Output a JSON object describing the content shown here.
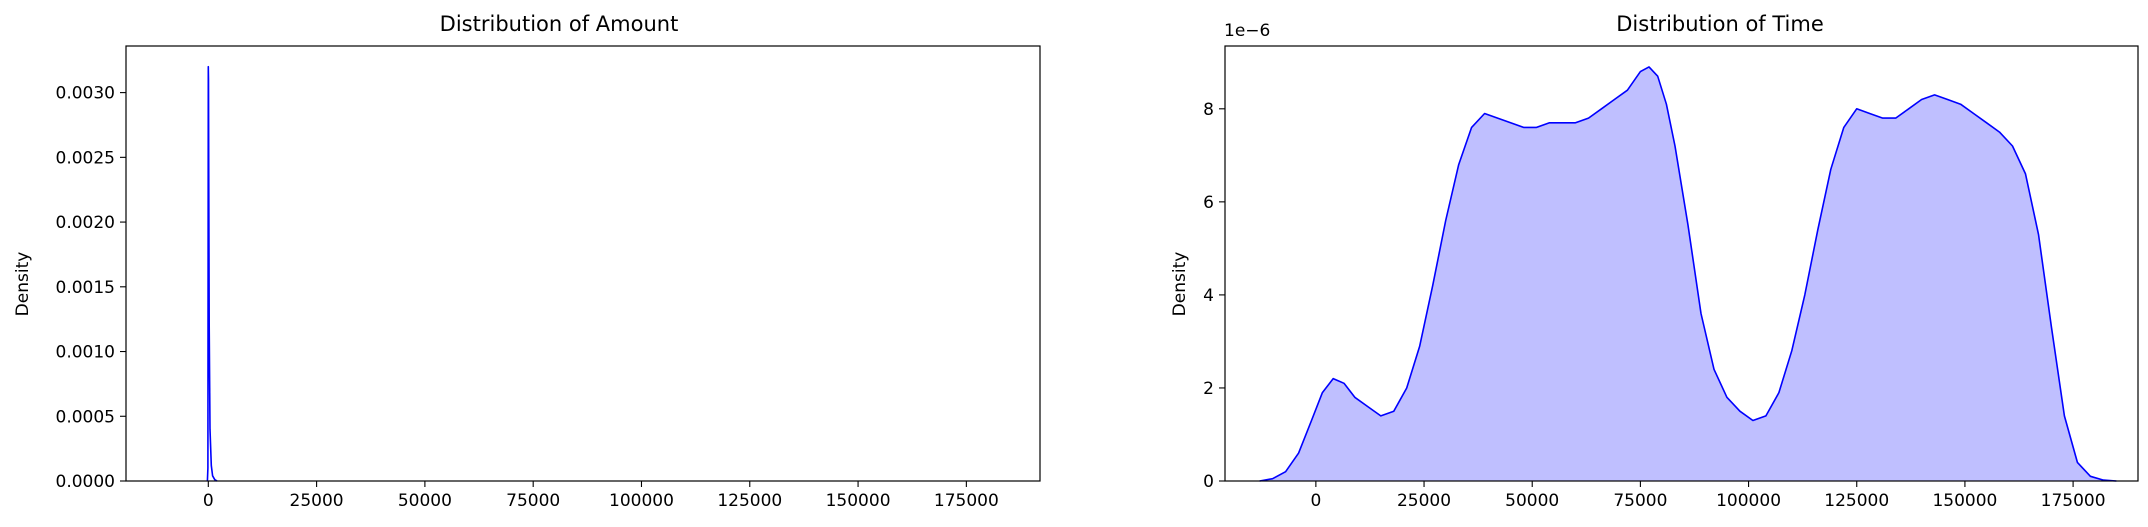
{
  "figure": {
    "background": "#ffffff"
  },
  "chart_data": [
    {
      "type": "area",
      "title": "Distribution of Amount",
      "xlabel": "",
      "ylabel": "Density",
      "xlim": [
        -19000,
        192000
      ],
      "ylim": [
        0,
        0.00336
      ],
      "xticks": [
        0,
        25000,
        50000,
        75000,
        100000,
        125000,
        150000,
        175000
      ],
      "xtick_labels": [
        "0",
        "25000",
        "50000",
        "75000",
        "100000",
        "125000",
        "150000",
        "175000"
      ],
      "yticks": [
        0,
        0.0005,
        0.001,
        0.0015,
        0.002,
        0.0025,
        0.003
      ],
      "ytick_labels": [
        "0.0000",
        "0.0005",
        "0.0010",
        "0.0015",
        "0.0020",
        "0.0025",
        "0.0030"
      ],
      "y_offset_text": "",
      "fill": false,
      "line_color": "#0000ff",
      "fill_color": "#bfbfff",
      "series": [
        {
          "x": [
            -200,
            -100,
            0,
            50,
            100,
            200,
            400,
            700,
            1000,
            1500,
            2000
          ],
          "y": [
            0,
            0.0001,
            0.0032,
            0.0031,
            0.0025,
            0.0012,
            0.0004,
            0.00012,
            4e-05,
            1e-05,
            0
          ]
        }
      ]
    },
    {
      "type": "area",
      "title": "Distribution of Time",
      "xlabel": "",
      "ylabel": "Density",
      "xlim": [
        -21000,
        190000
      ],
      "ylim": [
        0,
        9.35e-06
      ],
      "xticks": [
        0,
        25000,
        50000,
        75000,
        100000,
        125000,
        150000,
        175000
      ],
      "xtick_labels": [
        "0",
        "25000",
        "50000",
        "75000",
        "100000",
        "125000",
        "150000",
        "175000"
      ],
      "yticks": [
        0,
        2e-06,
        4e-06,
        6e-06,
        8e-06
      ],
      "ytick_labels": [
        "0",
        "2",
        "4",
        "6",
        "8"
      ],
      "y_offset_text": "1e−6",
      "fill": true,
      "line_color": "#0000ff",
      "fill_color": "#bfbfff",
      "series": [
        {
          "x": [
            -13000,
            -10000,
            -7000,
            -4000,
            -1000,
            1500,
            4000,
            6500,
            9000,
            12000,
            15000,
            18000,
            21000,
            24000,
            27000,
            30000,
            33000,
            36000,
            39000,
            42000,
            45000,
            48000,
            51000,
            54000,
            57000,
            60000,
            63000,
            66000,
            69000,
            72000,
            75000,
            77000,
            79000,
            81000,
            83000,
            86000,
            89000,
            92000,
            95000,
            98000,
            101000,
            104000,
            107000,
            110000,
            113000,
            116000,
            119000,
            122000,
            125000,
            128000,
            131000,
            134000,
            137000,
            140000,
            143000,
            146000,
            149000,
            152000,
            155000,
            158000,
            161000,
            164000,
            167000,
            170000,
            173000,
            176000,
            179000,
            182000,
            185000
          ],
          "y": [
            0,
            5e-08,
            2e-07,
            6e-07,
            1.3e-06,
            1.9e-06,
            2.2e-06,
            2.1e-06,
            1.8e-06,
            1.6e-06,
            1.4e-06,
            1.5e-06,
            2e-06,
            2.9e-06,
            4.2e-06,
            5.6e-06,
            6.8e-06,
            7.6e-06,
            7.9e-06,
            7.8e-06,
            7.7e-06,
            7.6e-06,
            7.6e-06,
            7.7e-06,
            7.7e-06,
            7.7e-06,
            7.8e-06,
            8e-06,
            8.2e-06,
            8.4e-06,
            8.8e-06,
            8.9e-06,
            8.7e-06,
            8.1e-06,
            7.2e-06,
            5.5e-06,
            3.6e-06,
            2.4e-06,
            1.8e-06,
            1.5e-06,
            1.3e-06,
            1.4e-06,
            1.9e-06,
            2.8e-06,
            4e-06,
            5.4e-06,
            6.7e-06,
            7.6e-06,
            8e-06,
            7.9e-06,
            7.8e-06,
            7.8e-06,
            8e-06,
            8.2e-06,
            8.3e-06,
            8.2e-06,
            8.1e-06,
            7.9e-06,
            7.7e-06,
            7.5e-06,
            7.2e-06,
            6.6e-06,
            5.3e-06,
            3.3e-06,
            1.4e-06,
            4e-07,
            1e-07,
            2e-08,
            0
          ]
        }
      ]
    }
  ]
}
